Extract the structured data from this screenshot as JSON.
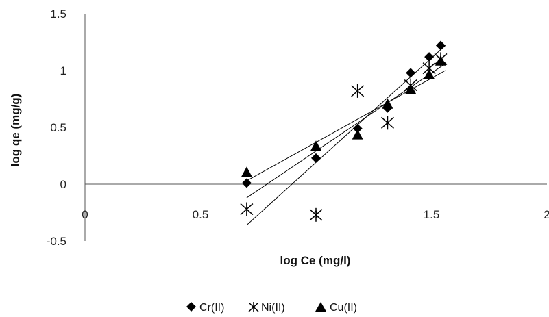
{
  "chart_data": {
    "type": "scatter",
    "xlabel": "log Ce (mg/l)",
    "ylabel": "log qe (mg/g)",
    "xlim": [
      0,
      2
    ],
    "ylim": [
      -0.5,
      1.5
    ],
    "x_ticks": [
      "0",
      "0.5",
      "1",
      "1.5",
      "2"
    ],
    "y_ticks": [
      "-0.5",
      "0",
      "0.5",
      "1",
      "1.5"
    ],
    "legend_position": "bottom",
    "series": [
      {
        "name": "Cr(II)",
        "marker": "diamond",
        "color": "#000000",
        "points": [
          [
            0.7,
            0.01
          ],
          [
            1.0,
            0.23
          ],
          [
            1.18,
            0.49
          ],
          [
            1.31,
            0.67
          ],
          [
            1.41,
            0.98
          ],
          [
            1.49,
            1.12
          ],
          [
            1.54,
            1.22
          ]
        ],
        "trendline": [
          [
            0.7,
            -0.36
          ],
          [
            1.56,
            1.22
          ]
        ]
      },
      {
        "name": "Ni(II)",
        "marker": "asterisk",
        "color": "#000000",
        "points": [
          [
            0.7,
            -0.22
          ],
          [
            1.0,
            -0.27
          ],
          [
            1.18,
            0.82
          ],
          [
            1.31,
            0.54
          ],
          [
            1.41,
            0.87
          ],
          [
            1.49,
            1.02
          ],
          [
            1.54,
            1.1
          ]
        ],
        "trendline": [
          [
            0.7,
            -0.12
          ],
          [
            1.56,
            1.06
          ]
        ]
      },
      {
        "name": "Cu(II)",
        "marker": "triangle",
        "color": "#000000",
        "points": [
          [
            0.7,
            0.1
          ],
          [
            1.0,
            0.33
          ],
          [
            1.18,
            0.43
          ],
          [
            1.31,
            0.7
          ],
          [
            1.41,
            0.83
          ],
          [
            1.49,
            0.96
          ],
          [
            1.54,
            1.08
          ]
        ],
        "trendline": [
          [
            0.7,
            0.03
          ],
          [
            1.56,
            1.0
          ]
        ]
      }
    ]
  }
}
